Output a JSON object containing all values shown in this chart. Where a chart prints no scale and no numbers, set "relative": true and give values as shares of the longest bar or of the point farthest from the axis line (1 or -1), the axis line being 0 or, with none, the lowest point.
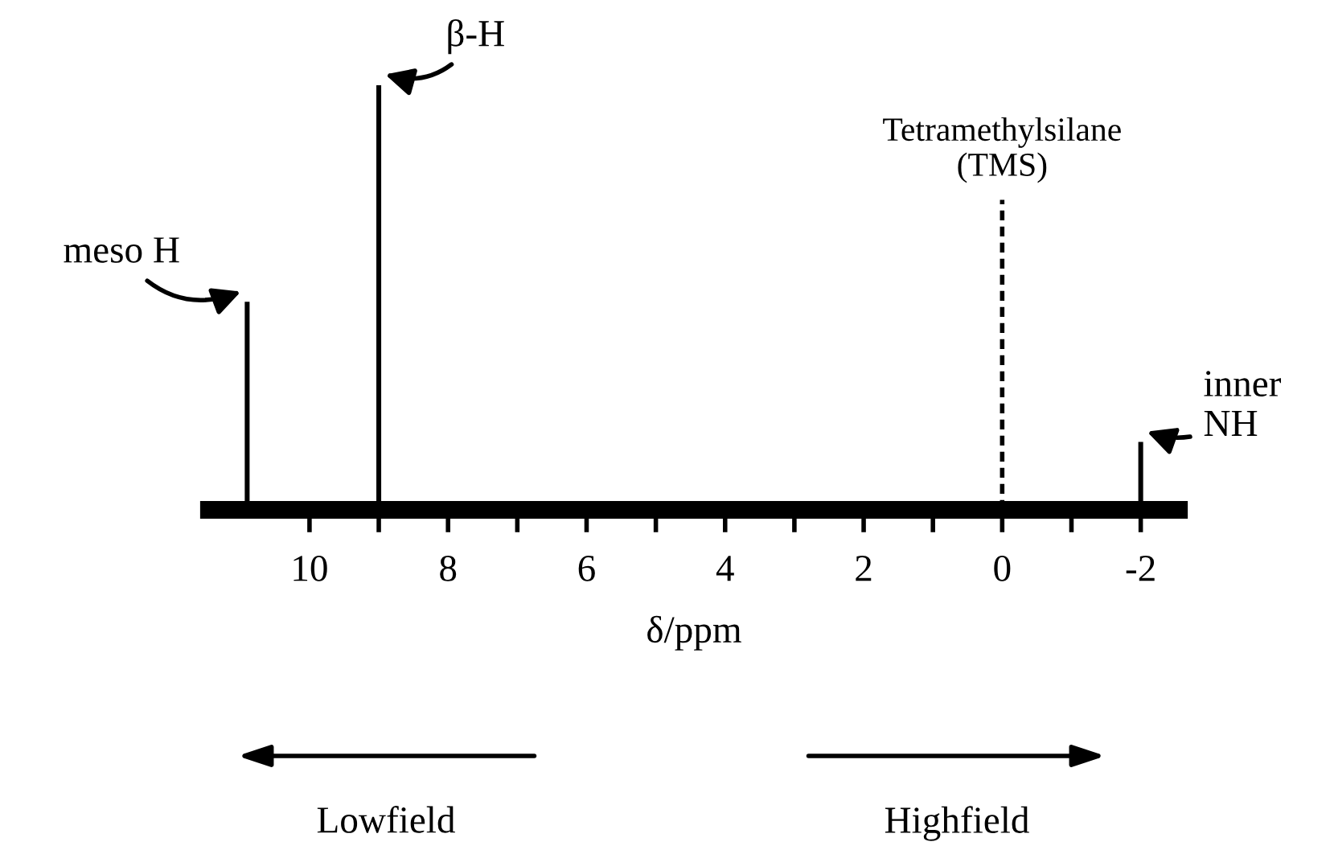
{
  "chart_data": {
    "type": "bar",
    "relative": true,
    "x": [
      10.9,
      9.0,
      -2.0
    ],
    "values": [
      0.49,
      1.0,
      0.16
    ],
    "color": "#000000",
    "xlabel": "δ/ppm",
    "xlim": [
      11.45,
      -2.55
    ],
    "xticks": [
      10,
      {
        "value": 9,
        "label": null
      },
      8,
      {
        "value": 7,
        "label": null
      },
      6,
      {
        "value": 5,
        "label": null
      },
      4,
      {
        "value": 3,
        "label": null
      },
      2,
      {
        "value": 1,
        "label": null
      },
      0,
      {
        "value": -1,
        "label": null
      },
      -2
    ],
    "ref_lines": [
      {
        "axis": "x",
        "value": 0,
        "label": "Tetramethylsilane\n(TMS)",
        "color": "#000000",
        "line_style": "dashed"
      }
    ],
    "annotations": [
      {
        "text": "meso H",
        "x": 10.9,
        "y": 0.49
      },
      {
        "text": "β-H",
        "x": 9.0,
        "y": 1.0
      },
      {
        "text": "inner\nNH",
        "x": -2.0,
        "y": 0.16
      },
      "Lowfield",
      "Highfield"
    ],
    "grid": false
  }
}
